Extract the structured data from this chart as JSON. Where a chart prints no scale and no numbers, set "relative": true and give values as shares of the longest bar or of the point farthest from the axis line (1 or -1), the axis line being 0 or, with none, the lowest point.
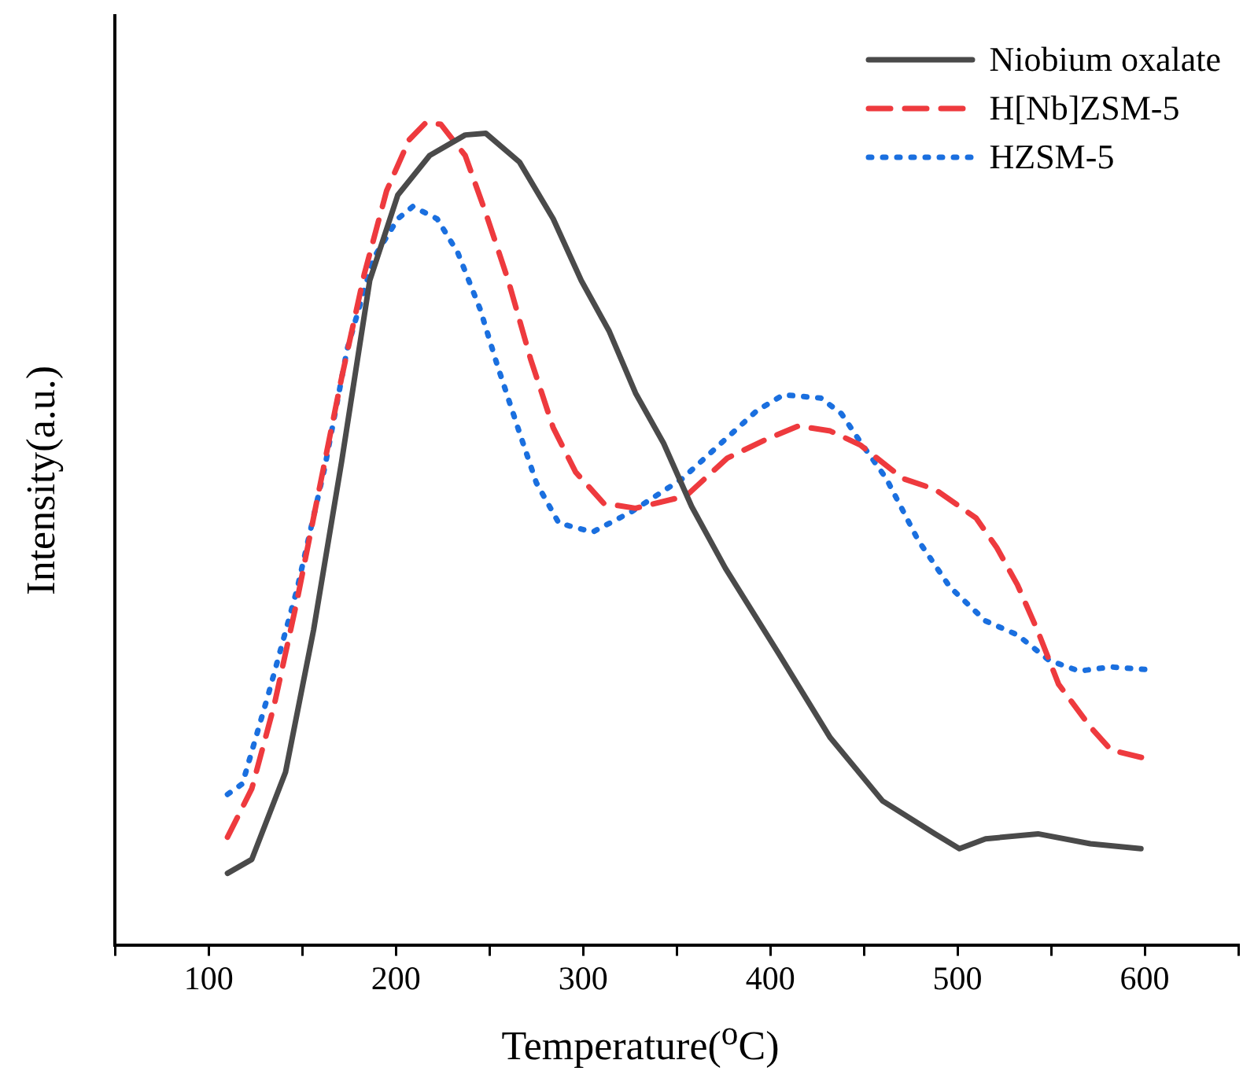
{
  "chart_data": {
    "type": "line",
    "xlabel": "Temperature($^{o}$C)",
    "ylabel": "Intensity(a.u.)",
    "relative": true,
    "legend": "top right",
    "marker": "none",
    "xlim": [
      50,
      650
    ],
    "xticks": [
      {
        "value": 50,
        "label": null
      },
      100,
      {
        "value": 150,
        "label": null
      },
      200,
      {
        "value": 250,
        "label": null
      },
      300,
      {
        "value": 350,
        "label": null
      },
      400,
      {
        "value": 450,
        "label": null
      },
      500,
      {
        "value": 550,
        "label": null
      },
      600,
      {
        "value": 650,
        "label": null
      }
    ],
    "series": [
      {
        "name": "Niobium oxalate",
        "color": "#4a4a4a",
        "line_style": "solid",
        "x": [
          110,
          123,
          141,
          156,
          171,
          186,
          201,
          218,
          237,
          248,
          266,
          284,
          299,
          314,
          328,
          343,
          358,
          376,
          404,
          432,
          460,
          488,
          501,
          515,
          543,
          571,
          598
        ],
        "values": [
          0.087,
          0.104,
          0.21,
          0.383,
          0.588,
          0.808,
          0.912,
          0.96,
          0.985,
          0.987,
          0.952,
          0.883,
          0.808,
          0.746,
          0.671,
          0.61,
          0.533,
          0.458,
          0.356,
          0.252,
          0.175,
          0.135,
          0.117,
          0.129,
          0.135,
          0.123,
          0.117
        ]
      },
      {
        "name": "H[Nb]ZSM-5",
        "color": "#ee3a3e",
        "line_style": "dashed",
        "x": [
          110,
          123,
          135,
          147,
          159,
          171,
          183,
          195,
          207,
          216,
          224,
          237,
          248,
          260,
          272,
          284,
          296,
          311,
          328,
          355,
          377,
          398,
          415,
          432,
          448,
          471,
          488,
          510,
          521,
          532,
          543,
          554,
          571,
          582,
          600
        ],
        "values": [
          0.131,
          0.19,
          0.292,
          0.417,
          0.554,
          0.69,
          0.815,
          0.917,
          0.979,
          1,
          0.998,
          0.96,
          0.89,
          0.808,
          0.712,
          0.629,
          0.575,
          0.537,
          0.531,
          0.546,
          0.592,
          0.615,
          0.631,
          0.625,
          0.608,
          0.567,
          0.554,
          0.519,
          0.483,
          0.438,
          0.381,
          0.317,
          0.265,
          0.237,
          0.227
        ]
      },
      {
        "name": "HZSM-5",
        "color": "#1a6fdf",
        "line_style": "dotted",
        "x": [
          110,
          118,
          132,
          147,
          162,
          174,
          188,
          201,
          209,
          222,
          233,
          245,
          254,
          266,
          275,
          287,
          305,
          326,
          353,
          377,
          393,
          407,
          427,
          438,
          448,
          462,
          479,
          496,
          515,
          532,
          549,
          565,
          582,
          600
        ],
        "values": [
          0.183,
          0.196,
          0.306,
          0.431,
          0.581,
          0.725,
          0.835,
          0.883,
          0.898,
          0.883,
          0.842,
          0.773,
          0.706,
          0.623,
          0.562,
          0.513,
          0.502,
          0.527,
          0.567,
          0.617,
          0.65,
          0.669,
          0.665,
          0.646,
          0.612,
          0.567,
          0.492,
          0.435,
          0.394,
          0.377,
          0.346,
          0.333,
          0.338,
          0.335
        ]
      }
    ]
  }
}
